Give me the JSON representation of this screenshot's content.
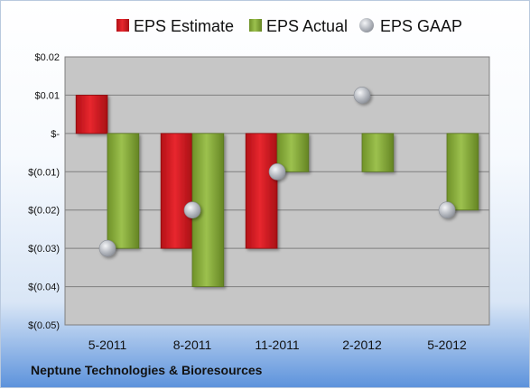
{
  "company": "Neptune Technologies & Bioresources",
  "colors": {
    "estimate": "#d9171f",
    "actual": "#8aaf3c",
    "gaap": "#b4b8bf",
    "plot_bg": "#c6c6c6",
    "grid": "#7f7f7f"
  },
  "chart_data": {
    "type": "bar",
    "title": "",
    "xlabel": "",
    "ylabel": "",
    "categories": [
      "5-2011",
      "8-2011",
      "11-2011",
      "2-2012",
      "5-2012"
    ],
    "series": [
      {
        "name": "EPS Estimate",
        "kind": "bar",
        "values": [
          0.01,
          -0.03,
          -0.03,
          null,
          null
        ]
      },
      {
        "name": "EPS Actual",
        "kind": "bar",
        "values": [
          -0.03,
          -0.04,
          -0.01,
          -0.01,
          -0.02
        ]
      },
      {
        "name": "EPS GAAP",
        "kind": "marker",
        "values": [
          -0.03,
          -0.02,
          -0.01,
          0.01,
          -0.02
        ]
      }
    ],
    "ylim": [
      -0.05,
      0.02
    ],
    "yticks": [
      0.02,
      0.01,
      0,
      -0.01,
      -0.02,
      -0.03,
      -0.04,
      -0.05
    ],
    "ytick_labels": [
      "$0.02",
      "$0.01",
      "$-",
      "$(0.01)",
      "$(0.02)",
      "$(0.03)",
      "$(0.04)",
      "$(0.05)"
    ],
    "grid": true,
    "legend": "top"
  }
}
